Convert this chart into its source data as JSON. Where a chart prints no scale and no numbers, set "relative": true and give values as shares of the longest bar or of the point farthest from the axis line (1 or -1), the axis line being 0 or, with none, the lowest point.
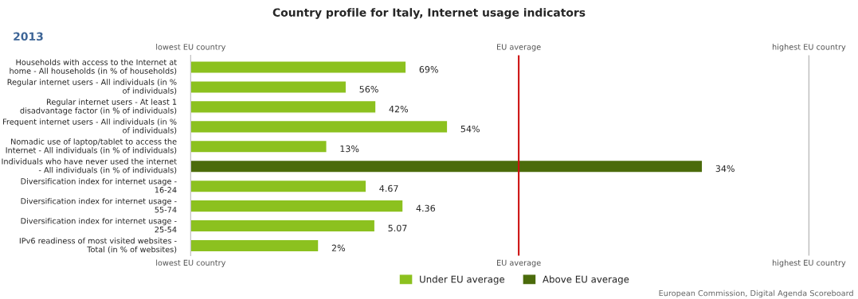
{
  "chart_data": {
    "type": "bar",
    "orientation": "horizontal",
    "relative": true,
    "title": "Country profile for Italy, Internet usage indicators",
    "subtitle": "2013",
    "categories": [
      "Households with access to the Internet at home - All households (in % of households)",
      "Regular internet users - All individuals (in % of individuals)",
      "Regular internet users - At least 1 disadvantage factor (in % of individuals)",
      "Frequent internet users - All individuals (in % of individuals)",
      "Nomadic use of laptop/tablet to access the Internet - All individuals (in % of individuals)",
      "Individuals who have never used the internet - All individuals (in % of individuals)",
      "Diversification index for internet usage - 16-24",
      "Diversification index for internet usage - 55-74",
      "Diversification index for internet usage - 25-54",
      "IPv6 readiness of most visited websites - Total (in % of websites)"
    ],
    "series": [
      {
        "name": "Under EU average",
        "color": "#8cc11f",
        "values": [
          0.421,
          0.304,
          0.362,
          0.502,
          0.266,
          null,
          0.343,
          0.415,
          0.36,
          0.25
        ]
      },
      {
        "name": "Above EU average",
        "color": "#4b6b0b",
        "values": [
          null,
          null,
          null,
          null,
          null,
          1,
          null,
          null,
          null,
          null
        ]
      }
    ],
    "value_labels": [
      "69%",
      "56%",
      "42%",
      "54%",
      "13%",
      "34%",
      "4.67",
      "4.36",
      "5.07",
      "2%"
    ],
    "ref_lines": [
      {
        "axis": "x",
        "value": 0.641,
        "label": "EU average",
        "color": "#cc1111"
      },
      {
        "axis": "x",
        "value": 1.208,
        "label": "highest EU country",
        "color": "#bbbbbb"
      }
    ],
    "legend": "bottom",
    "annotations": [
      "lowest EU country",
      "European Commission, Digital Agenda Scoreboard"
    ]
  }
}
